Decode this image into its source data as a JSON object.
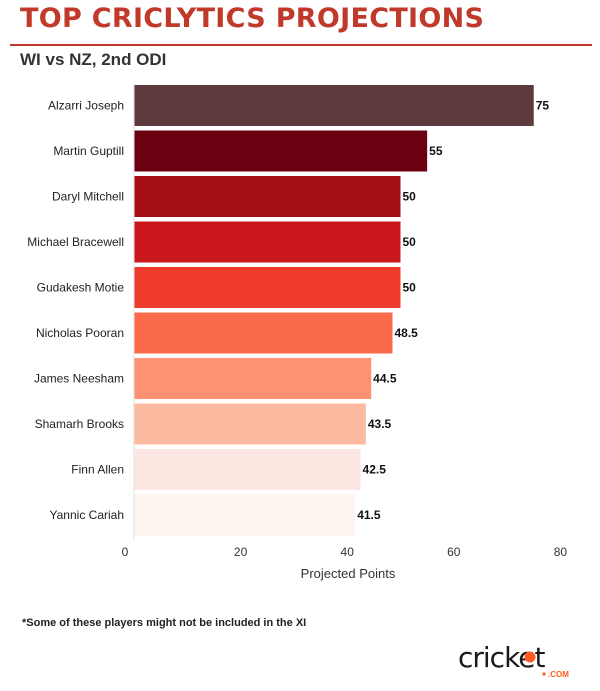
{
  "header": {
    "title": "TOP CRICLYTICS PROJECTIONS",
    "subtitle": "WI vs NZ, 2nd ODI"
  },
  "chart_data": {
    "type": "bar",
    "orientation": "horizontal",
    "categories": [
      "Alzarri Joseph",
      "Martin Guptill",
      "Daryl Mitchell",
      "Michael Bracewell",
      "Gudakesh Motie",
      "Nicholas Pooran",
      "James Neesham",
      "Shamarh Brooks",
      "Finn Allen",
      "Yannic Cariah"
    ],
    "values": [
      75,
      55,
      50,
      50,
      50,
      48.5,
      44.5,
      43.5,
      42.5,
      41.5
    ],
    "value_labels": [
      "75",
      "55",
      "50",
      "50",
      "50",
      "48.5",
      "44.5",
      "43.5",
      "42.5",
      "41.5"
    ],
    "bar_colors": [
      "#5e3a3f",
      "#6b0010",
      "#a50f15",
      "#cb181d",
      "#ef3b2c",
      "#fb6a4a",
      "#fc9272",
      "#fcbba1",
      "#fde7e3",
      "#fff5f0"
    ],
    "xlabel": "Projected Points",
    "ylabel": "",
    "xlim": [
      0,
      80
    ],
    "xticks": [
      "0",
      "20",
      "40",
      "60",
      "80"
    ],
    "grid": false,
    "legend": "none"
  },
  "footnote": "*Some of these players might not be included in the XI",
  "logo": {
    "text": "cricket",
    "subtext": ".COM",
    "colors": {
      "primary": "#1a1a1a",
      "accent": "#ff5a1f"
    }
  }
}
